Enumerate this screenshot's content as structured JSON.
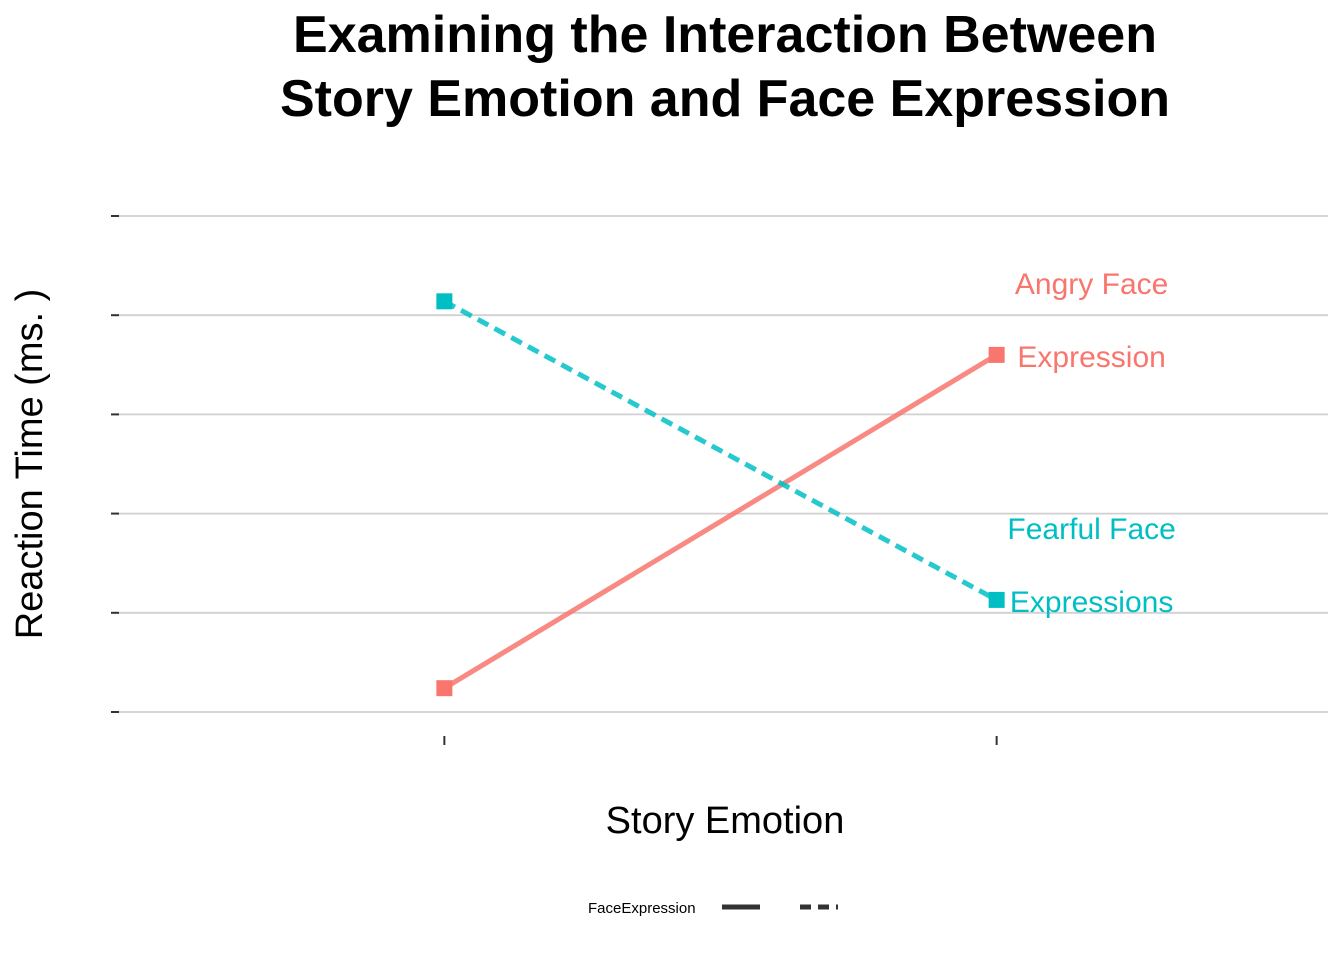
{
  "chart_data": {
    "type": "line",
    "title": "Examining the Interaction Between Story Emotion and Face Expression",
    "title_lines": [
      "Examining the Interaction Between",
      "Story Emotion and Face Expression"
    ],
    "xlabel": "Story Emotion",
    "ylabel": "Reaction Time (ms. )",
    "x_positions": [
      1,
      2
    ],
    "xlim": [
      0.4,
      2.6
    ],
    "ylim": [
      0,
      5
    ],
    "y_ticks": [
      0,
      1,
      2,
      3,
      4,
      5
    ],
    "grid": "horizontal",
    "series": [
      {
        "key": "angry",
        "values": [
          0.24,
          3.6
        ],
        "color": "#F8766D",
        "line_style": "solid",
        "label_lines": [
          "Angry Face",
          "Expression"
        ]
      },
      {
        "key": "fearful",
        "values": [
          4.14,
          1.13
        ],
        "color": "#00BFC4",
        "line_style": "dashed",
        "label_lines": [
          "Fearful Face",
          "Expressions"
        ]
      }
    ],
    "legend": {
      "title": "FaceExpression",
      "position": "bottom"
    }
  }
}
